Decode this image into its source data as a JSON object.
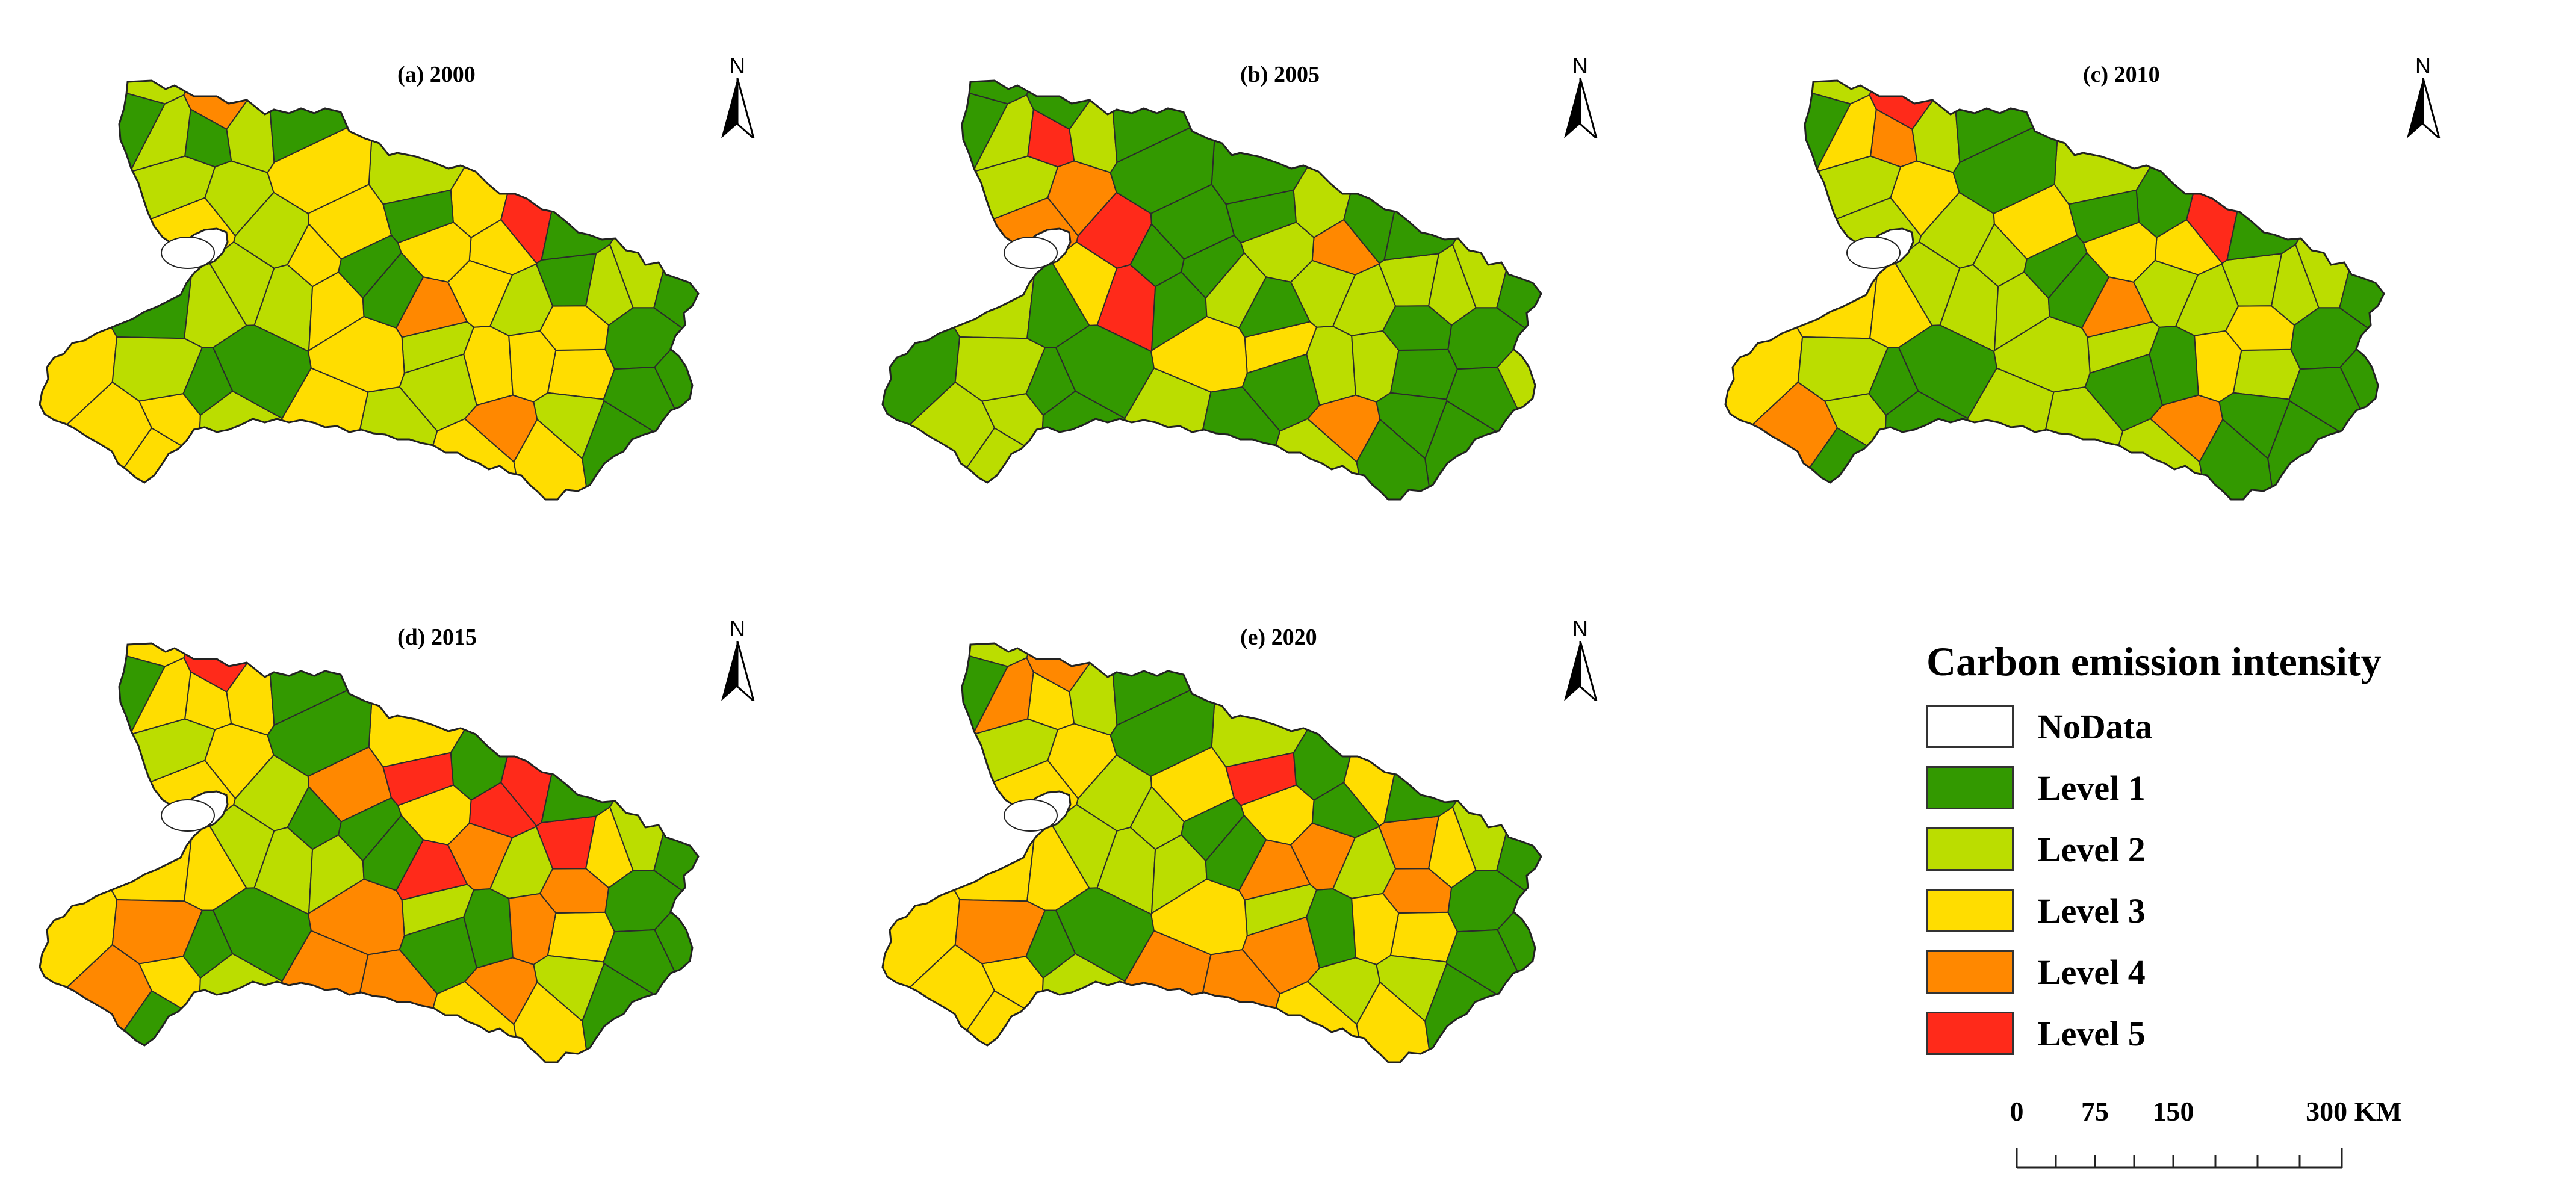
{
  "panels": [
    {
      "title": "(a) 2000",
      "levels": [
        3,
        3,
        3,
        4,
        5,
        2,
        3,
        1,
        3,
        2,
        3,
        1,
        2,
        3,
        1,
        2,
        3,
        1,
        1,
        3,
        2,
        3,
        2,
        3,
        1,
        2,
        3,
        1,
        2,
        3,
        2,
        1,
        2,
        3,
        1,
        3,
        2,
        1,
        2,
        1,
        3,
        2,
        4,
        2,
        1,
        2,
        3,
        1,
        2,
        3,
        2,
        1,
        3,
        2,
        1,
        3,
        4,
        2,
        3,
        1
      ]
    },
    {
      "title": "(b) 2005",
      "levels": [
        2,
        2,
        2,
        4,
        1,
        1,
        2,
        1,
        1,
        5,
        4,
        5,
        4,
        1,
        2,
        1,
        1,
        2,
        1,
        1,
        1,
        2,
        1,
        2,
        1,
        5,
        4,
        2,
        1,
        2,
        2,
        1,
        2,
        1,
        1,
        2,
        3,
        1,
        2,
        1,
        3,
        2,
        1,
        1,
        2,
        2,
        1,
        1,
        2,
        1,
        2,
        1,
        1,
        3,
        1,
        2,
        1,
        1,
        2,
        1
      ]
    },
    {
      "title": "(c) 2010",
      "levels": [
        1,
        1,
        1,
        4,
        5,
        2,
        2,
        1,
        2,
        2,
        3,
        4,
        3,
        1,
        2,
        1,
        2,
        3,
        1,
        2,
        1,
        2,
        3,
        2,
        1,
        2,
        2,
        1,
        2,
        3,
        2,
        1,
        2,
        3,
        1,
        2,
        2,
        1,
        3,
        1,
        2,
        2,
        4,
        1,
        1,
        2,
        3,
        1,
        2,
        3,
        2,
        1,
        1,
        2,
        1,
        4,
        5,
        2,
        3,
        1
      ]
    },
    {
      "title": "(d) 2015",
      "levels": [
        1,
        1,
        1,
        4,
        5,
        3,
        3,
        1,
        1,
        2,
        5,
        3,
        3,
        1,
        5,
        1,
        2,
        3,
        1,
        3,
        2,
        4,
        3,
        4,
        1,
        2,
        3,
        1,
        4,
        3,
        2,
        1,
        2,
        4,
        5,
        3,
        2,
        1,
        3,
        1,
        4,
        3,
        5,
        2,
        1,
        3,
        4,
        1,
        2,
        3,
        4,
        1,
        3,
        2,
        1,
        4,
        5,
        3,
        4,
        1
      ]
    },
    {
      "title": "(e) 2020",
      "levels": [
        1,
        1,
        3,
        2,
        3,
        2,
        3,
        1,
        2,
        2,
        1,
        3,
        3,
        1,
        4,
        4,
        2,
        3,
        1,
        3,
        2,
        4,
        3,
        4,
        1,
        2,
        3,
        1,
        4,
        3,
        2,
        1,
        2,
        3,
        5,
        3,
        2,
        1,
        4,
        1,
        3,
        2,
        4,
        2,
        1,
        3,
        4,
        1,
        2,
        3,
        4,
        1,
        3,
        2,
        1,
        3,
        4,
        2,
        3,
        1
      ]
    }
  ],
  "north_label": "N",
  "legend": {
    "title": "Carbon emission intensity",
    "items": [
      {
        "label": "NoData",
        "color": "#ffffff"
      },
      {
        "label": "Level 1",
        "color": "#339900"
      },
      {
        "label": "Level 2",
        "color": "#bbdd00"
      },
      {
        "label": "Level 3",
        "color": "#ffdd00"
      },
      {
        "label": "Level 4",
        "color": "#ff8800"
      },
      {
        "label": "Level 5",
        "color": "#ff2a1a"
      }
    ]
  },
  "scalebar": {
    "labels": [
      "0",
      "75",
      "150",
      "300 KM"
    ],
    "values_km": [
      0,
      75,
      150,
      300
    ]
  }
}
